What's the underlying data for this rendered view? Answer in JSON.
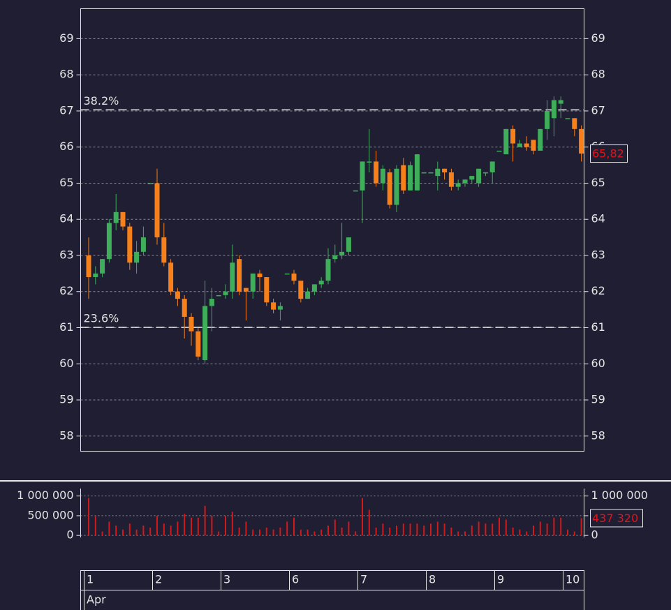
{
  "chart_data": [
    {
      "type": "candlestick",
      "categories": [
        "1",
        null,
        null,
        null,
        null,
        null,
        null,
        null,
        null,
        null,
        "2",
        null,
        null,
        null,
        null,
        null,
        null,
        null,
        null,
        null,
        "3",
        null,
        null,
        null,
        null,
        null,
        null,
        null,
        null,
        null,
        "6",
        null,
        null,
        null,
        null,
        null,
        null,
        null,
        null,
        null,
        "7",
        null,
        null,
        null,
        null,
        null,
        null,
        null,
        null,
        null,
        "8",
        null,
        null,
        null,
        null,
        null,
        null,
        null,
        null,
        null,
        "9",
        null,
        null,
        null,
        null,
        null,
        null,
        null,
        null,
        null,
        "10",
        null,
        null
      ],
      "month_label": "Apr",
      "open": [
        63.0,
        62.4,
        62.5,
        62.9,
        63.9,
        64.2,
        63.8,
        62.8,
        63.1,
        65.0,
        65.0,
        63.5,
        62.8,
        62.0,
        61.8,
        61.3,
        60.9,
        60.1,
        61.6,
        61.9,
        61.9,
        62.0,
        62.9,
        62.1,
        62.0,
        62.5,
        62.4,
        61.7,
        61.5,
        62.5,
        62.5,
        62.3,
        61.8,
        62.0,
        62.2,
        62.3,
        62.9,
        63.0,
        63.1,
        64.8,
        64.8,
        65.6,
        65.6,
        65.0,
        65.3,
        64.4,
        65.5,
        64.8,
        64.8,
        65.3,
        65.3,
        65.2,
        65.4,
        65.3,
        64.9,
        65.0,
        65.1,
        65.0,
        65.3,
        65.3,
        65.9,
        65.8,
        66.5,
        66.0,
        66.1,
        66.2,
        65.9,
        66.5,
        66.8,
        67.2,
        66.8,
        66.8,
        66.5
      ],
      "high": [
        63.5,
        62.7,
        62.9,
        64.0,
        64.7,
        64.2,
        63.9,
        63.4,
        63.8,
        65.0,
        65.4,
        63.9,
        62.9,
        62.1,
        61.9,
        61.4,
        61.0,
        62.3,
        62.1,
        61.9,
        62.2,
        63.3,
        63.0,
        62.1,
        62.5,
        62.6,
        62.4,
        61.8,
        61.7,
        62.5,
        62.6,
        62.3,
        62.1,
        62.2,
        62.4,
        63.2,
        63.3,
        63.9,
        63.5,
        64.8,
        65.6,
        66.5,
        65.9,
        65.5,
        65.4,
        65.5,
        65.7,
        65.6,
        65.8,
        65.3,
        65.3,
        65.6,
        65.4,
        65.4,
        65.1,
        65.1,
        65.2,
        65.4,
        65.3,
        65.6,
        65.9,
        66.5,
        66.6,
        66.2,
        66.3,
        66.2,
        66.5,
        67.3,
        67.4,
        67.4,
        66.8,
        66.8,
        66.6
      ],
      "low": [
        61.8,
        62.2,
        62.4,
        62.8,
        63.7,
        63.7,
        62.6,
        62.5,
        63.0,
        65.0,
        63.3,
        62.7,
        61.9,
        61.6,
        60.7,
        60.5,
        60.1,
        60.0,
        60.9,
        61.9,
        61.8,
        61.8,
        61.9,
        61.2,
        61.8,
        62.0,
        61.6,
        61.4,
        61.2,
        62.5,
        62.2,
        61.7,
        61.8,
        61.9,
        62.1,
        62.2,
        62.8,
        62.9,
        63.0,
        64.8,
        63.9,
        65.3,
        64.9,
        64.8,
        64.3,
        64.2,
        64.7,
        64.8,
        64.8,
        65.3,
        65.3,
        64.8,
        65.1,
        64.8,
        64.8,
        64.9,
        65.0,
        64.9,
        65.2,
        65.0,
        65.9,
        65.8,
        65.6,
        66.0,
        65.9,
        65.8,
        65.9,
        66.2,
        66.3,
        66.8,
        66.8,
        66.3,
        65.6
      ],
      "close": [
        62.4,
        62.5,
        62.9,
        63.9,
        64.2,
        63.8,
        62.8,
        63.1,
        63.5,
        65.0,
        63.5,
        62.8,
        62.0,
        61.8,
        61.3,
        60.9,
        60.2,
        61.6,
        61.8,
        61.9,
        62.0,
        62.8,
        62.0,
        62.0,
        62.5,
        62.4,
        61.7,
        61.5,
        61.6,
        62.5,
        62.3,
        61.8,
        62.0,
        62.2,
        62.3,
        62.9,
        63.0,
        63.1,
        63.5,
        64.8,
        65.6,
        65.6,
        65.0,
        65.4,
        64.4,
        65.4,
        64.8,
        65.5,
        65.8,
        65.3,
        65.3,
        65.4,
        65.3,
        64.9,
        65.0,
        65.1,
        65.2,
        65.4,
        65.3,
        65.6,
        65.9,
        66.5,
        66.1,
        66.1,
        66.0,
        65.9,
        66.5,
        67.0,
        67.3,
        67.3,
        66.8,
        66.5,
        65.82
      ],
      "up_color": "#3fae5a",
      "down_color": "#f7801a",
      "last_price_label": "65,82",
      "ylim": [
        57.58,
        69.83
      ],
      "yticks": [
        58,
        59,
        60,
        61,
        62,
        63,
        64,
        65,
        66,
        67,
        68,
        69
      ],
      "fib_levels": [
        {
          "value": 67.03,
          "label": "38.2%"
        },
        {
          "value": 61.01,
          "label": "23.6%"
        }
      ],
      "grid": true
    },
    {
      "type": "bar",
      "values": [
        950000,
        500000,
        100000,
        350000,
        250000,
        150000,
        300000,
        150000,
        250000,
        200000,
        500000,
        300000,
        250000,
        350000,
        550000,
        450000,
        450000,
        750000,
        500000,
        100000,
        500000,
        600000,
        200000,
        350000,
        150000,
        150000,
        200000,
        150000,
        200000,
        350000,
        450000,
        150000,
        150000,
        100000,
        150000,
        250000,
        400000,
        200000,
        350000,
        100000,
        950000,
        650000,
        200000,
        300000,
        200000,
        250000,
        300000,
        300000,
        300000,
        250000,
        300000,
        350000,
        300000,
        200000,
        100000,
        100000,
        250000,
        350000,
        300000,
        300000,
        450000,
        400000,
        200000,
        150000,
        100000,
        250000,
        350000,
        300000,
        450000,
        450000,
        150000,
        100000,
        437320
      ],
      "color": "#d21a1a",
      "last_value_label": "437 320",
      "ylim": [
        -50000,
        1100000
      ],
      "yticks": [
        0,
        {
          "value": 500000,
          "label": "500 000"
        },
        {
          "value": 1000000,
          "label": "1 000 000"
        }
      ],
      "grid": true
    }
  ]
}
